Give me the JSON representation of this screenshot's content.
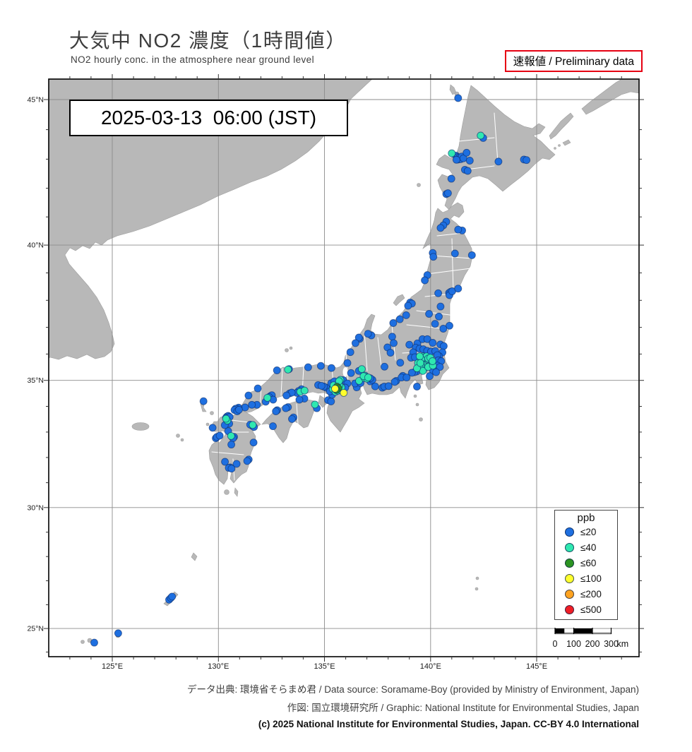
{
  "header": {
    "title": "大気中 NO2 濃度（1時間値）",
    "subtitle": "NO2 hourly conc. in the atmosphere near ground level",
    "preliminary_badge": "速報値 / Preliminary data",
    "timestamp": "2025-03-13  06:00 (JST)"
  },
  "colors": {
    "land": "#b8b8b8",
    "land_border": "#9e9e9e",
    "graticule": "#8c8c8c",
    "frame": "#000000",
    "prefecture_line": "#ffffff",
    "badge_red": "#e60012",
    "station_outline": "#0b2e6e"
  },
  "legend": {
    "title": "ppb",
    "items": [
      {
        "label": "≤20",
        "max": 20,
        "color": "#1e6fe0"
      },
      {
        "label": "≤40",
        "max": 40,
        "color": "#2fe8b0"
      },
      {
        "label": "≤60",
        "max": 60,
        "color": "#2c9422"
      },
      {
        "label": "≤100",
        "max": 100,
        "color": "#ffff2d"
      },
      {
        "label": "≤200",
        "max": 200,
        "color": "#ffa320"
      },
      {
        "label": "≤500",
        "max": 500,
        "color": "#f01e25"
      }
    ]
  },
  "scalebar": {
    "tick_labels": [
      "0",
      "100",
      "200",
      "300"
    ],
    "unit": "km"
  },
  "map": {
    "lat_ticks": [
      {
        "value": 45,
        "label": "45°N"
      },
      {
        "value": 40,
        "label": "40°N"
      },
      {
        "value": 35,
        "label": "35°N"
      },
      {
        "value": 30,
        "label": "30°N"
      },
      {
        "value": 25,
        "label": "25°N"
      }
    ],
    "lon_ticks": [
      {
        "value": 125,
        "label": "125°E"
      },
      {
        "value": 130,
        "label": "130°E"
      },
      {
        "value": 135,
        "label": "135°E"
      },
      {
        "value": 140,
        "label": "140°E"
      },
      {
        "value": 145,
        "label": "145°E"
      }
    ],
    "stations": [
      [
        141.3,
        45.05,
        20
      ],
      [
        142.36,
        43.8,
        40
      ],
      [
        142.48,
        43.72,
        20
      ],
      [
        141.0,
        43.2,
        40
      ],
      [
        141.2,
        43.12,
        20
      ],
      [
        141.28,
        43.07,
        20
      ],
      [
        141.36,
        43.06,
        20
      ],
      [
        141.3,
        42.99,
        20
      ],
      [
        141.42,
        43.0,
        20
      ],
      [
        141.47,
        43.09,
        20
      ],
      [
        141.55,
        43.03,
        20
      ],
      [
        141.22,
        42.98,
        20
      ],
      [
        141.7,
        43.22,
        20
      ],
      [
        141.85,
        42.95,
        20
      ],
      [
        143.2,
        42.92,
        20
      ],
      [
        144.4,
        42.99,
        20
      ],
      [
        144.52,
        42.97,
        20
      ],
      [
        141.62,
        42.64,
        20
      ],
      [
        141.75,
        42.6,
        20
      ],
      [
        140.98,
        42.33,
        20
      ],
      [
        140.74,
        41.8,
        20
      ],
      [
        140.82,
        41.83,
        20
      ],
      [
        140.74,
        40.83,
        20
      ],
      [
        140.6,
        40.7,
        20
      ],
      [
        141.49,
        40.52,
        20
      ],
      [
        141.3,
        40.55,
        20
      ],
      [
        140.47,
        40.61,
        20
      ],
      [
        141.15,
        39.7,
        20
      ],
      [
        141.95,
        39.64,
        20
      ],
      [
        140.1,
        39.72,
        20
      ],
      [
        140.13,
        39.58,
        20
      ],
      [
        140.36,
        38.26,
        20
      ],
      [
        139.85,
        38.92,
        20
      ],
      [
        139.73,
        38.73,
        20
      ],
      [
        140.87,
        38.27,
        20
      ],
      [
        140.94,
        38.31,
        20
      ],
      [
        140.89,
        38.19,
        20
      ],
      [
        141.02,
        38.33,
        20
      ],
      [
        141.3,
        38.43,
        20
      ],
      [
        140.47,
        37.77,
        20
      ],
      [
        140.39,
        37.4,
        20
      ],
      [
        139.93,
        37.5,
        20
      ],
      [
        140.89,
        37.06,
        20
      ],
      [
        140.21,
        37.13,
        20
      ],
      [
        140.6,
        36.95,
        20
      ],
      [
        139.04,
        37.92,
        20
      ],
      [
        139.12,
        37.88,
        20
      ],
      [
        138.94,
        37.8,
        20
      ],
      [
        138.85,
        37.45,
        20
      ],
      [
        138.55,
        37.3,
        20
      ],
      [
        138.24,
        37.16,
        20
      ],
      [
        137.21,
        36.7,
        20
      ],
      [
        137.05,
        36.76,
        20
      ],
      [
        136.66,
        36.57,
        20
      ],
      [
        136.62,
        36.62,
        20
      ],
      [
        136.46,
        36.41,
        20
      ],
      [
        136.22,
        36.07,
        20
      ],
      [
        136.08,
        35.66,
        20
      ],
      [
        139.0,
        36.35,
        20
      ],
      [
        139.38,
        36.4,
        20
      ],
      [
        139.62,
        36.56,
        20
      ],
      [
        139.85,
        36.56,
        20
      ],
      [
        140.1,
        36.42,
        20
      ],
      [
        140.46,
        36.36,
        20
      ],
      [
        140.62,
        36.3,
        20
      ],
      [
        140.56,
        36.06,
        20
      ],
      [
        140.4,
        35.92,
        20
      ],
      [
        139.3,
        36.24,
        20
      ],
      [
        139.48,
        36.2,
        20
      ],
      [
        139.66,
        36.18,
        20
      ],
      [
        139.84,
        36.12,
        20
      ],
      [
        140.02,
        36.09,
        20
      ],
      [
        140.22,
        36.11,
        20
      ],
      [
        140.32,
        35.96,
        20
      ],
      [
        139.18,
        36.06,
        20
      ],
      [
        139.08,
        35.86,
        20
      ],
      [
        139.26,
        35.88,
        20
      ],
      [
        140.36,
        35.76,
        20
      ],
      [
        140.5,
        35.73,
        20
      ],
      [
        140.32,
        35.56,
        20
      ],
      [
        140.44,
        35.51,
        20
      ],
      [
        140.12,
        35.36,
        20
      ],
      [
        140.26,
        35.31,
        20
      ],
      [
        139.96,
        35.16,
        20
      ],
      [
        139.35,
        35.34,
        20
      ],
      [
        139.24,
        35.31,
        20
      ],
      [
        139.12,
        35.29,
        20
      ],
      [
        139.36,
        34.76,
        20
      ],
      [
        139.7,
        35.7,
        40
      ],
      [
        139.78,
        35.67,
        40
      ],
      [
        139.64,
        35.61,
        40
      ],
      [
        139.76,
        35.59,
        40
      ],
      [
        139.62,
        35.47,
        40
      ],
      [
        139.68,
        35.43,
        40
      ],
      [
        139.73,
        35.53,
        40
      ],
      [
        139.86,
        35.66,
        40
      ],
      [
        139.91,
        35.73,
        40
      ],
      [
        139.98,
        35.69,
        40
      ],
      [
        139.55,
        35.56,
        40
      ],
      [
        139.48,
        35.51,
        40
      ],
      [
        139.64,
        35.36,
        40
      ],
      [
        139.96,
        35.56,
        40
      ],
      [
        140.06,
        35.61,
        40
      ],
      [
        139.89,
        35.51,
        40
      ],
      [
        140.11,
        35.56,
        40
      ],
      [
        139.63,
        35.91,
        40
      ],
      [
        139.71,
        35.86,
        40
      ],
      [
        139.81,
        35.91,
        40
      ],
      [
        139.56,
        35.81,
        40
      ],
      [
        139.49,
        35.91,
        40
      ],
      [
        139.89,
        35.83,
        40
      ],
      [
        139.99,
        35.86,
        40
      ],
      [
        140.09,
        35.73,
        40
      ],
      [
        139.41,
        35.66,
        40
      ],
      [
        139.36,
        35.46,
        40
      ],
      [
        139.52,
        35.66,
        40
      ],
      [
        138.19,
        36.65,
        20
      ],
      [
        137.97,
        36.25,
        20
      ],
      [
        138.11,
        36.05,
        20
      ],
      [
        138.57,
        35.67,
        20
      ],
      [
        138.26,
        36.41,
        20
      ],
      [
        137.83,
        35.52,
        20
      ],
      [
        138.38,
        34.98,
        20
      ],
      [
        138.31,
        34.94,
        20
      ],
      [
        138.69,
        35.17,
        20
      ],
      [
        138.63,
        35.11,
        20
      ],
      [
        138.87,
        35.11,
        20
      ],
      [
        137.73,
        34.72,
        20
      ],
      [
        137.82,
        34.76,
        20
      ],
      [
        138.02,
        34.78,
        20
      ],
      [
        137.39,
        34.77,
        20
      ],
      [
        136.76,
        35.43,
        40
      ],
      [
        136.63,
        34.98,
        40
      ],
      [
        136.91,
        35.18,
        40
      ],
      [
        136.96,
        35.13,
        40
      ],
      [
        136.89,
        35.09,
        40
      ],
      [
        137.01,
        35.06,
        40
      ],
      [
        136.84,
        35.16,
        40
      ],
      [
        137.06,
        35.11,
        40
      ],
      [
        136.52,
        34.73,
        20
      ],
      [
        136.44,
        34.88,
        20
      ],
      [
        136.62,
        35.36,
        20
      ],
      [
        137.16,
        34.96,
        20
      ],
      [
        136.7,
        34.9,
        20
      ],
      [
        137.26,
        35.02,
        20
      ],
      [
        137.16,
        35.08,
        20
      ],
      [
        135.5,
        34.68,
        100
      ],
      [
        135.91,
        34.52,
        100
      ],
      [
        135.59,
        34.76,
        60
      ],
      [
        135.66,
        34.7,
        60
      ],
      [
        135.56,
        34.63,
        60
      ],
      [
        135.45,
        34.73,
        40
      ],
      [
        135.39,
        34.67,
        40
      ],
      [
        135.52,
        34.56,
        40
      ],
      [
        135.63,
        34.6,
        40
      ],
      [
        135.74,
        34.64,
        40
      ],
      [
        135.8,
        34.73,
        40
      ],
      [
        135.43,
        34.81,
        40
      ],
      [
        135.7,
        34.81,
        40
      ],
      [
        135.75,
        35.02,
        40
      ],
      [
        135.69,
        34.97,
        40
      ],
      [
        135.19,
        34.69,
        20
      ],
      [
        135.08,
        34.72,
        20
      ],
      [
        134.97,
        34.76,
        20
      ],
      [
        134.7,
        34.82,
        20
      ],
      [
        134.86,
        34.79,
        20
      ],
      [
        135.88,
        35.01,
        20
      ],
      [
        136.25,
        35.28,
        20
      ],
      [
        135.17,
        34.24,
        20
      ],
      [
        135.31,
        34.19,
        20
      ],
      [
        135.36,
        34.45,
        20
      ],
      [
        135.26,
        34.58,
        20
      ],
      [
        135.32,
        34.89,
        20
      ],
      [
        135.47,
        34.96,
        20
      ],
      [
        135.33,
        35.47,
        20
      ],
      [
        134.83,
        35.55,
        20
      ],
      [
        136.08,
        34.88,
        20
      ],
      [
        135.98,
        34.72,
        20
      ],
      [
        133.92,
        34.66,
        20
      ],
      [
        133.78,
        34.59,
        20
      ],
      [
        133.7,
        34.52,
        20
      ],
      [
        133.36,
        34.5,
        20
      ],
      [
        133.46,
        34.53,
        20
      ],
      [
        133.21,
        34.42,
        20
      ],
      [
        132.46,
        34.4,
        20
      ],
      [
        132.52,
        34.43,
        20
      ],
      [
        132.39,
        34.36,
        20
      ],
      [
        132.58,
        34.26,
        20
      ],
      [
        132.23,
        34.18,
        20
      ],
      [
        131.82,
        34.06,
        20
      ],
      [
        131.58,
        34.06,
        20
      ],
      [
        131.26,
        33.96,
        20
      ],
      [
        130.95,
        33.95,
        20
      ],
      [
        134.23,
        35.5,
        20
      ],
      [
        133.33,
        35.43,
        20
      ],
      [
        132.76,
        35.38,
        20
      ],
      [
        131.86,
        34.69,
        20
      ],
      [
        131.42,
        34.42,
        20
      ],
      [
        133.28,
        35.41,
        40
      ],
      [
        133.86,
        34.56,
        40
      ],
      [
        134.06,
        34.61,
        40
      ],
      [
        132.31,
        34.33,
        40
      ],
      [
        134.05,
        34.3,
        20
      ],
      [
        133.82,
        34.26,
        20
      ],
      [
        134.55,
        34.07,
        40
      ],
      [
        134.64,
        33.93,
        20
      ],
      [
        132.77,
        33.85,
        20
      ],
      [
        132.71,
        33.81,
        20
      ],
      [
        133.28,
        33.97,
        20
      ],
      [
        133.18,
        33.93,
        20
      ],
      [
        133.54,
        33.57,
        20
      ],
      [
        133.47,
        33.51,
        20
      ],
      [
        132.57,
        33.23,
        20
      ],
      [
        130.88,
        33.89,
        20
      ],
      [
        130.81,
        33.91,
        20
      ],
      [
        130.76,
        33.86,
        20
      ],
      [
        130.89,
        33.81,
        20
      ],
      [
        130.97,
        33.87,
        20
      ],
      [
        130.4,
        33.6,
        20
      ],
      [
        130.46,
        33.63,
        20
      ],
      [
        130.36,
        33.56,
        20
      ],
      [
        130.53,
        33.59,
        20
      ],
      [
        130.42,
        33.45,
        40
      ],
      [
        130.36,
        33.52,
        40
      ],
      [
        130.51,
        33.33,
        20
      ],
      [
        130.46,
        33.04,
        20
      ],
      [
        130.3,
        33.27,
        20
      ],
      [
        129.88,
        32.76,
        20
      ],
      [
        129.93,
        32.81,
        20
      ],
      [
        129.73,
        33.17,
        20
      ],
      [
        130.06,
        32.86,
        20
      ],
      [
        131.62,
        33.28,
        40
      ],
      [
        131.61,
        33.24,
        20
      ],
      [
        131.5,
        33.29,
        20
      ],
      [
        131.68,
        33.2,
        20
      ],
      [
        130.74,
        32.81,
        20
      ],
      [
        130.69,
        32.76,
        20
      ],
      [
        130.6,
        32.85,
        40
      ],
      [
        130.61,
        32.51,
        20
      ],
      [
        131.66,
        32.59,
        20
      ],
      [
        131.43,
        31.92,
        20
      ],
      [
        131.36,
        31.86,
        20
      ],
      [
        130.56,
        31.61,
        20
      ],
      [
        130.49,
        31.59,
        20
      ],
      [
        130.62,
        31.56,
        20
      ],
      [
        130.86,
        31.75,
        20
      ],
      [
        130.31,
        31.83,
        20
      ],
      [
        129.3,
        34.2,
        20
      ],
      [
        127.68,
        26.21,
        20
      ],
      [
        127.76,
        26.28,
        20
      ],
      [
        127.82,
        26.34,
        20
      ],
      [
        125.28,
        24.8,
        20
      ],
      [
        124.15,
        24.4,
        20
      ]
    ]
  },
  "footer": {
    "source_line": "データ出典: 環境省そらまめ君 / Data source: Soramame-Boy (provided by Ministry of Environment, Japan)",
    "graphic_line": "作図: 国立環境研究所 / Graphic: National Institute for Environmental Studies, Japan",
    "copyright_line": "(c) 2025 National Institute for Environmental Studies, Japan. CC-BY 4.0 International"
  }
}
